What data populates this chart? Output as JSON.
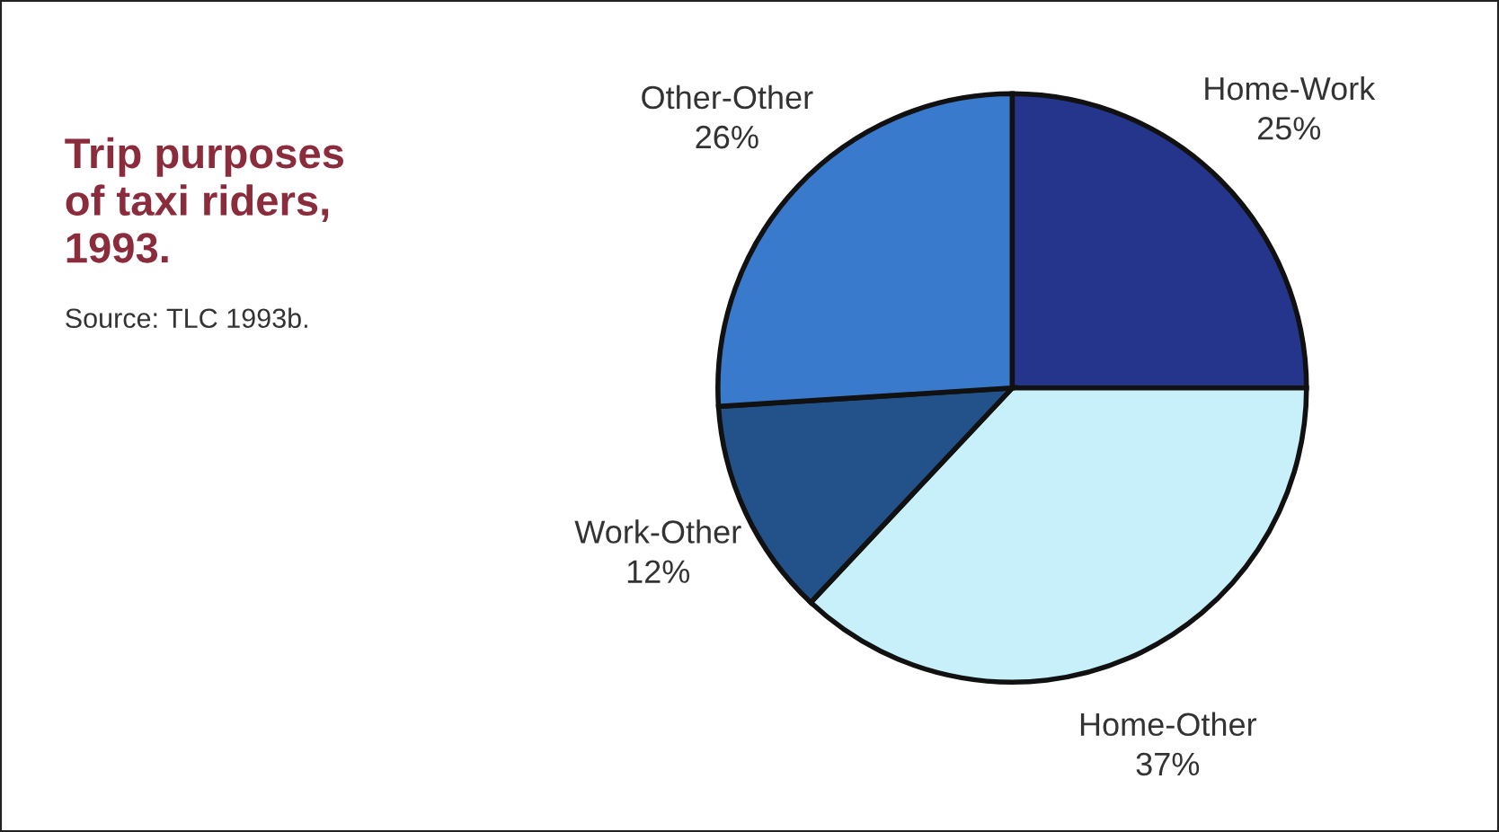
{
  "chart_data": {
    "type": "pie",
    "title": "Trip purposes\nof taxi riders,\n1993.",
    "annotations": [
      "Source: TLC 1993b."
    ],
    "categories": [
      "Home-Work",
      "Home-Other",
      "Work-Other",
      "Other-Other"
    ],
    "values": [
      25,
      37,
      12,
      26
    ],
    "value_labels": [
      "25%",
      "37%",
      "12%",
      "26%"
    ],
    "colors": [
      "#25358c",
      "#c8f0fa",
      "#23528a",
      "#3a7acc"
    ],
    "legend": false
  }
}
